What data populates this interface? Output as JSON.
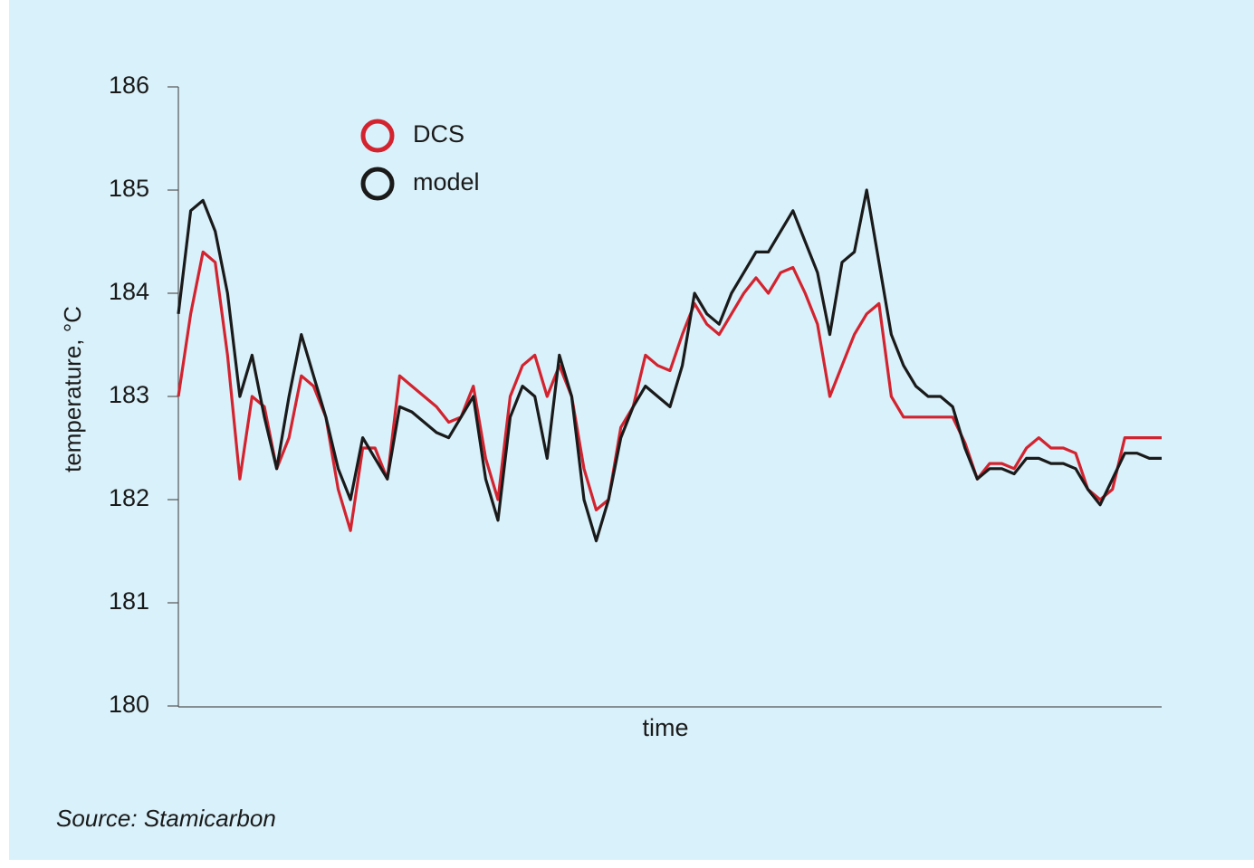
{
  "chart_data": {
    "type": "line",
    "y_label": "temperature, °C",
    "x_label": "time",
    "source": "Source: Stamicarbon",
    "categories": [
      null,
      null,
      null,
      null,
      null,
      null,
      null,
      null,
      null,
      null,
      null,
      null,
      null,
      null,
      null,
      null,
      null,
      null,
      null,
      null,
      null,
      null,
      null,
      null,
      null,
      null,
      null,
      null,
      null,
      null,
      null,
      null,
      null,
      null,
      null,
      null,
      null,
      null,
      null,
      null,
      null,
      null,
      null,
      null,
      null,
      null,
      null,
      null,
      null,
      null,
      null,
      null,
      null,
      null,
      null,
      null,
      null,
      null,
      null,
      null,
      null,
      null,
      null,
      null,
      null,
      null,
      null,
      null,
      null,
      null,
      null,
      null,
      null,
      null,
      null,
      null,
      null,
      null,
      null,
      null,
      null
    ],
    "series": [
      {
        "name": "DCS",
        "color": "#d3232f",
        "values": [
          183.0,
          183.8,
          184.4,
          184.3,
          183.4,
          182.2,
          183.0,
          182.9,
          182.3,
          182.6,
          183.2,
          183.1,
          182.8,
          182.1,
          181.7,
          182.5,
          182.5,
          182.2,
          183.2,
          183.1,
          183.0,
          182.9,
          182.75,
          182.8,
          183.1,
          182.4,
          182.0,
          183.0,
          183.3,
          183.4,
          183.0,
          183.3,
          183.0,
          182.3,
          181.9,
          182.0,
          182.7,
          182.9,
          183.4,
          183.3,
          183.25,
          183.6,
          183.9,
          183.7,
          183.6,
          183.8,
          184.0,
          184.15,
          184.0,
          184.2,
          184.25,
          184.0,
          183.7,
          183.0,
          183.3,
          183.6,
          183.8,
          183.9,
          183.0,
          182.8,
          182.8,
          182.8,
          182.8,
          182.8,
          182.55,
          182.2,
          182.35,
          182.35,
          182.3,
          182.5,
          182.6,
          182.5,
          182.5,
          182.45,
          182.1,
          182.0,
          182.1,
          182.6,
          182.6,
          182.6,
          182.6
        ]
      },
      {
        "name": "model",
        "color": "#1a1a1a",
        "values": [
          183.8,
          184.8,
          184.9,
          184.6,
          184.0,
          183.0,
          183.4,
          182.8,
          182.3,
          183.0,
          183.6,
          183.2,
          182.8,
          182.3,
          182.0,
          182.6,
          182.4,
          182.2,
          182.9,
          182.85,
          182.75,
          182.65,
          182.6,
          182.8,
          183.0,
          182.2,
          181.8,
          182.8,
          183.1,
          183.0,
          182.4,
          183.4,
          183.0,
          182.0,
          181.6,
          182.0,
          182.6,
          182.9,
          183.1,
          183.0,
          182.9,
          183.3,
          184.0,
          183.8,
          183.7,
          184.0,
          184.2,
          184.4,
          184.4,
          184.6,
          184.8,
          184.5,
          184.2,
          183.6,
          184.3,
          184.4,
          185.0,
          184.3,
          183.6,
          183.3,
          183.1,
          183.0,
          183.0,
          182.9,
          182.5,
          182.2,
          182.3,
          182.3,
          182.25,
          182.4,
          182.4,
          182.35,
          182.35,
          182.3,
          182.1,
          181.95,
          182.2,
          182.45,
          182.45,
          182.4,
          182.4
        ]
      }
    ],
    "ylim": [
      180,
      186
    ],
    "yticks": [
      180,
      181,
      182,
      183,
      184,
      185,
      186
    ]
  }
}
